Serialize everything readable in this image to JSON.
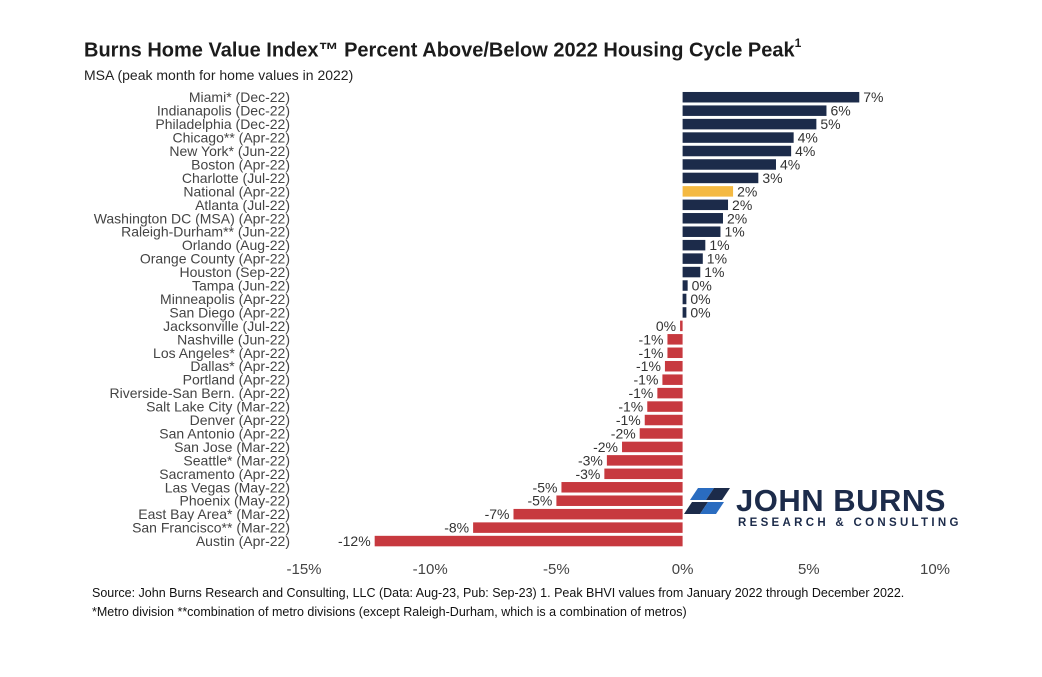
{
  "chart_data": {
    "type": "bar",
    "orientation": "horizontal",
    "title": "Burns Home Value Index™ Percent Above/Below 2022 Housing Cycle Peak",
    "title_superscript": "1",
    "subtitle": "MSA (peak month for home values in 2022)",
    "xlim": [
      -15,
      10
    ],
    "x_ticks": [
      -15,
      -10,
      -5,
      0,
      5,
      10
    ],
    "x_tick_labels": [
      "-15%",
      "-10%",
      "-5%",
      "0%",
      "5%",
      "10%"
    ],
    "grid": false,
    "colors": {
      "positive": "#1c2b4a",
      "national": "#f4b942",
      "negative": "#c7393f"
    },
    "categories": [
      "Miami* (Dec-22)",
      "Indianapolis (Dec-22)",
      "Philadelphia (Dec-22)",
      "Chicago** (Apr-22)",
      "New York* (Jun-22)",
      "Boston (Apr-22)",
      "Charlotte (Jul-22)",
      "National (Apr-22)",
      "Atlanta (Jul-22)",
      "Washington DC (MSA) (Apr-22)",
      "Raleigh-Durham** (Jun-22)",
      "Orlando (Aug-22)",
      "Orange County (Apr-22)",
      "Houston (Sep-22)",
      "Tampa (Jun-22)",
      "Minneapolis (Apr-22)",
      "San Diego (Apr-22)",
      "Jacksonville (Jul-22)",
      "Nashville (Jun-22)",
      "Los Angeles* (Apr-22)",
      "Dallas* (Apr-22)",
      "Portland (Apr-22)",
      "Riverside-San Bern. (Apr-22)",
      "Salt Lake City (Mar-22)",
      "Denver (Apr-22)",
      "San Antonio (Apr-22)",
      "San Jose (Mar-22)",
      "Seattle* (Mar-22)",
      "Sacramento (Apr-22)",
      "Las Vegas (May-22)",
      "Phoenix (May-22)",
      "East Bay Area* (Mar-22)",
      "San Francisco** (Mar-22)",
      "Austin (Apr-22)"
    ],
    "values": [
      7.0,
      5.7,
      5.3,
      4.4,
      4.3,
      3.7,
      3.0,
      2.0,
      1.8,
      1.6,
      1.5,
      0.9,
      0.8,
      0.7,
      0.2,
      0.15,
      0.15,
      -0.1,
      -0.6,
      -0.6,
      -0.7,
      -0.8,
      -1.0,
      -1.4,
      -1.5,
      -1.7,
      -2.4,
      -3.0,
      -3.1,
      -4.8,
      -5.0,
      -6.7,
      -8.3,
      -12.2
    ],
    "value_labels": [
      "7%",
      "6%",
      "5%",
      "4%",
      "4%",
      "4%",
      "3%",
      "2%",
      "2%",
      "2%",
      "1%",
      "1%",
      "1%",
      "1%",
      "0%",
      "0%",
      "0%",
      "0%",
      "-1%",
      "-1%",
      "-1%",
      "-1%",
      "-1%",
      "-1%",
      "-1%",
      "-2%",
      "-2%",
      "-3%",
      "-3%",
      "-5%",
      "-5%",
      "-7%",
      "-8%",
      "-12%"
    ],
    "highlight_category": "National (Apr-22)"
  },
  "logo": {
    "name": "JOHN BURNS",
    "tagline": "RESEARCH & CONSULTING"
  },
  "footer": {
    "line1": "Source: John Burns Research and Consulting, LLC (Data: Aug-23, Pub: Sep-23) 1. Peak BHVI values from January 2022 through December 2022.",
    "line2": "*Metro division **combination of metro divisions (except Raleigh-Durham, which is a combination of metros)"
  }
}
